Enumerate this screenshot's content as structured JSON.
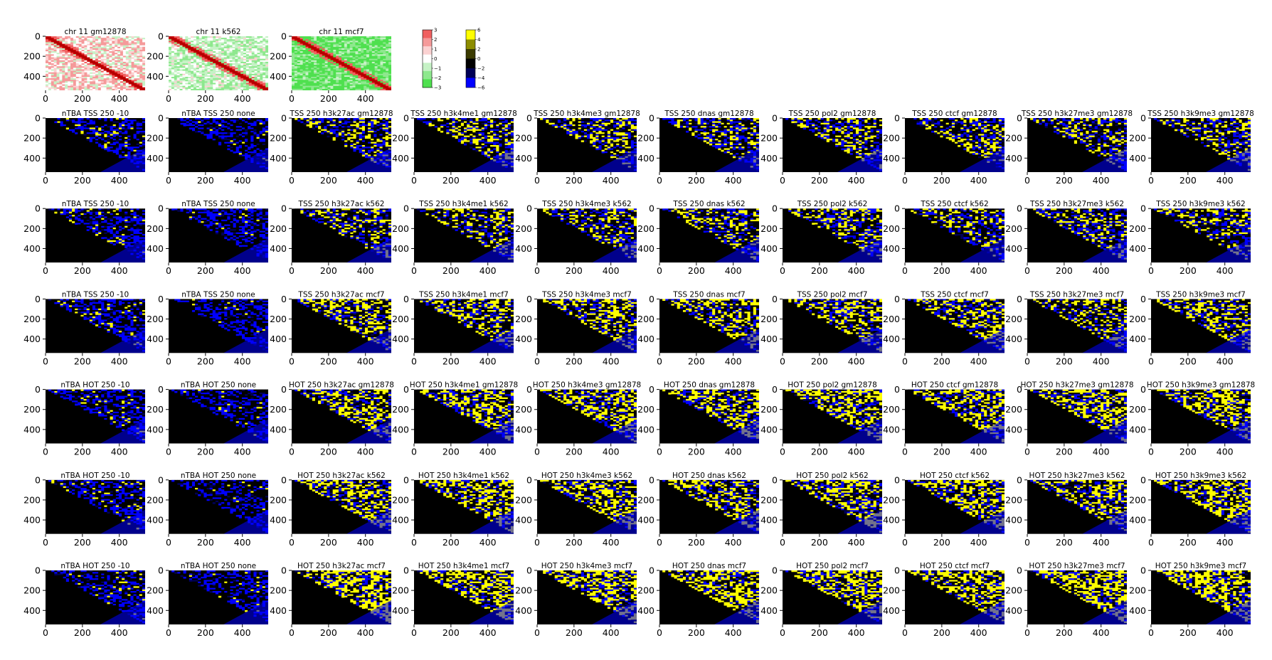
{
  "figure": {
    "panel_rows": [
      [
        "chr 11 gm12878",
        "chr 11 k562",
        "chr 11 mcf7"
      ],
      [
        "nTBA TSS 250 -10",
        "nTBA TSS 250 none",
        "TSS 250 h3k27ac gm12878",
        "TSS 250 h3k4me1 gm12878",
        "TSS 250 h3k4me3 gm12878",
        "TSS 250 dnas gm12878",
        "TSS 250 pol2 gm12878",
        "TSS 250 ctcf gm12878",
        "TSS 250 h3k27me3 gm12878",
        "TSS 250 h3k9me3 gm12878"
      ],
      [
        "nTBA TSS 250 -10",
        "nTBA TSS 250 none",
        "TSS 250 h3k27ac k562",
        "TSS 250 h3k4me1 k562",
        "TSS 250 h3k4me3 k562",
        "TSS 250 dnas k562",
        "TSS 250 pol2 k562",
        "TSS 250 ctcf k562",
        "TSS 250 h3k27me3 k562",
        "TSS 250 h3k9me3 k562"
      ],
      [
        "nTBA TSS 250 -10",
        "nTBA TSS 250 none",
        "TSS 250 h3k27ac mcf7",
        "TSS 250 h3k4me1 mcf7",
        "TSS 250 h3k4me3 mcf7",
        "TSS 250 dnas mcf7",
        "TSS 250 pol2 mcf7",
        "TSS 250 ctcf mcf7",
        "TSS 250 h3k27me3 mcf7",
        "TSS 250 h3k9me3 mcf7"
      ],
      [
        "nTBA HOT 250 -10",
        "nTBA HOT 250 none",
        "HOT 250 h3k27ac gm12878",
        "HOT 250 h3k4me1 gm12878",
        "HOT 250 h3k4me3 gm12878",
        "HOT 250 dnas gm12878",
        "HOT 250 pol2 gm12878",
        "HOT 250 ctcf gm12878",
        "HOT 250 h3k27me3 gm12878",
        "HOT 250 h3k9me3 gm12878"
      ],
      [
        "nTBA HOT 250 -10",
        "nTBA HOT 250 none",
        "HOT 250 h3k27ac k562",
        "HOT 250 h3k4me1 k562",
        "HOT 250 h3k4me3 k562",
        "HOT 250 dnas k562",
        "HOT 250 pol2 k562",
        "HOT 250 ctcf k562",
        "HOT 250 h3k27me3 k562",
        "HOT 250 h3k9me3 k562"
      ],
      [
        "nTBA HOT 250 -10",
        "nTBA HOT 250 none",
        "HOT 250 h3k27ac mcf7",
        "HOT 250 h3k4me1 mcf7",
        "HOT 250 h3k4me3 mcf7",
        "HOT 250 dnas mcf7",
        "HOT 250 pol2 mcf7",
        "HOT 250 ctcf mcf7",
        "HOT 250 h3k27me3 mcf7",
        "HOT 250 h3k9me3 mcf7"
      ]
    ]
  },
  "chart_data": {
    "type": "heatmap",
    "matrix_size": 540,
    "x_ticks": [
      0,
      200,
      400
    ],
    "y_ticks": [
      0,
      200,
      400
    ],
    "xlim": [
      0,
      540
    ],
    "ylim": [
      540,
      0
    ],
    "top_row_style": "red-white-green diagonal contact map",
    "other_rows_style": "lower triangle black; upper triangle blue with yellow spots",
    "colorbars": [
      {
        "name": "red-green",
        "ticks": [
          "3",
          "2",
          "1",
          "0",
          "−1",
          "−2",
          "−3"
        ],
        "colors": [
          "#f06060",
          "#f59a9a",
          "#fbd2d2",
          "#ffffff",
          "#c6f2c6",
          "#8ee88e",
          "#4fe04f"
        ]
      },
      {
        "name": "yellow-black-blue",
        "ticks": [
          "6",
          "4",
          "2",
          "0",
          "−2",
          "−4",
          "−6"
        ],
        "colors": [
          "#ffff00",
          "#8c8c00",
          "#3a3a00",
          "#000000",
          "#000055",
          "#0000ff"
        ]
      }
    ],
    "colors": {
      "red_diagonal": "#c80000",
      "green_background": "#5ad25a",
      "blue": "#0000ff",
      "yellow": "#ffff00",
      "black": "#000000"
    }
  }
}
